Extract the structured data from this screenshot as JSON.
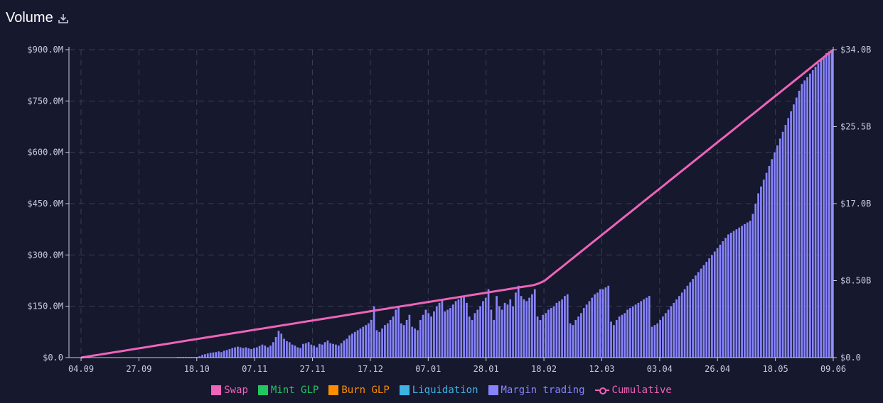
{
  "header": {
    "title": "Volume",
    "download_icon": "download-icon"
  },
  "colors": {
    "swap": "#ee64b8",
    "mint": "#22c761",
    "burn": "#fe8d00",
    "liquidation": "#3eb4e4",
    "margin": "#8884ff",
    "cumulative": "#ee64b8",
    "grid": "#3a3d58",
    "axis": "#c8cbe0"
  },
  "chart_data": {
    "type": "bar",
    "title": "Volume",
    "x_ticks": [
      "04.09",
      "27.09",
      "18.10",
      "07.11",
      "27.11",
      "17.12",
      "07.01",
      "28.01",
      "18.02",
      "12.03",
      "03.04",
      "26.04",
      "18.05",
      "09.06"
    ],
    "y_left_ticks": [
      "$0.0",
      "$150.0M",
      "$300.0M",
      "$450.0M",
      "$600.0M",
      "$750.0M",
      "$900.0M"
    ],
    "y_right_ticks": [
      "$0.0",
      "$8.50B",
      "$17.0B",
      "$25.5B",
      "$34.0B"
    ],
    "ylim_left": [
      0,
      900
    ],
    "ylim_right": [
      0,
      34
    ],
    "units": {
      "left": "$M",
      "right": "$B"
    },
    "grid": true,
    "legend_position": "bottom",
    "series": [
      {
        "name": "Swap",
        "kind": "bar",
        "color": "#ee64b8"
      },
      {
        "name": "Mint GLP",
        "kind": "bar",
        "color": "#22c761"
      },
      {
        "name": "Burn GLP",
        "kind": "bar",
        "color": "#fe8d00"
      },
      {
        "name": "Liquidation",
        "kind": "bar",
        "color": "#3eb4e4"
      },
      {
        "name": "Margin trading",
        "kind": "bar",
        "color": "#8884ff"
      },
      {
        "name": "Cumulative",
        "kind": "line",
        "axis": "right",
        "color": "#ee64b8"
      }
    ],
    "margin_trading": [
      1,
      1,
      1,
      1,
      1,
      1,
      1,
      1,
      1,
      1,
      1,
      1,
      1,
      1,
      1,
      1,
      1,
      1,
      1,
      1,
      1,
      1,
      1,
      1,
      1,
      1,
      1,
      1,
      1,
      1,
      1,
      1,
      1,
      1,
      1,
      2,
      2,
      2,
      2,
      2,
      2,
      2,
      2,
      4,
      8,
      10,
      12,
      14,
      15,
      16,
      18,
      16,
      20,
      22,
      25,
      28,
      30,
      32,
      30,
      28,
      30,
      27,
      25,
      28,
      30,
      34,
      38,
      35,
      30,
      35,
      45,
      60,
      78,
      70,
      55,
      48,
      45,
      38,
      35,
      30,
      28,
      40,
      42,
      45,
      38,
      35,
      30,
      40,
      38,
      45,
      50,
      42,
      40,
      38,
      35,
      42,
      50,
      55,
      65,
      70,
      75,
      80,
      85,
      90,
      95,
      100,
      110,
      150,
      80,
      75,
      85,
      95,
      100,
      110,
      120,
      140,
      150,
      100,
      95,
      110,
      125,
      90,
      85,
      80,
      110,
      125,
      140,
      130,
      120,
      135,
      150,
      160,
      170,
      135,
      140,
      145,
      155,
      165,
      170,
      175,
      180,
      160,
      120,
      110,
      130,
      140,
      150,
      165,
      175,
      200,
      140,
      110,
      180,
      150,
      140,
      160,
      155,
      170,
      150,
      190,
      210,
      180,
      170,
      165,
      175,
      185,
      200,
      120,
      110,
      125,
      130,
      140,
      145,
      150,
      160,
      165,
      170,
      180,
      185,
      100,
      95,
      110,
      120,
      130,
      145,
      155,
      165,
      175,
      185,
      190,
      200,
      200,
      205,
      210,
      105,
      95,
      110,
      120,
      125,
      130,
      140,
      145,
      150,
      155,
      160,
      165,
      170,
      175,
      180,
      90,
      95,
      100,
      110,
      120,
      130,
      140,
      150,
      160,
      170,
      180,
      190,
      200,
      210,
      220,
      230,
      240,
      250,
      260,
      270,
      280,
      290,
      300,
      310,
      320,
      330,
      340,
      350,
      360,
      365,
      370,
      375,
      380,
      385,
      390,
      395,
      400,
      420,
      450,
      480,
      500,
      520,
      540,
      560,
      580,
      600,
      620,
      640,
      660,
      680,
      700,
      720,
      740,
      760,
      780,
      800,
      810,
      820,
      830,
      840,
      850,
      860,
      870,
      880,
      890,
      895,
      900
    ],
    "cumulative": [
      0,
      0.1,
      0.2,
      0.3,
      0.4,
      0.5,
      0.6,
      0.7,
      0.8,
      0.9,
      1.0,
      1.1,
      1.2,
      1.3,
      1.4,
      1.5,
      1.6,
      1.7,
      1.8,
      1.9,
      2.0,
      2.1,
      2.2,
      2.3,
      2.4,
      2.5,
      2.6,
      2.7,
      2.8,
      2.9,
      3.0,
      3.1,
      3.2,
      3.3,
      3.4,
      3.5,
      3.6,
      3.7,
      3.8,
      3.9,
      4.0,
      4.1,
      4.2,
      4.3,
      4.4,
      4.5,
      4.6,
      4.7,
      4.8,
      4.9,
      5.0,
      5.1,
      5.2,
      5.3,
      5.4,
      5.5,
      5.6,
      5.7,
      5.8,
      5.9,
      6.0,
      6.1,
      6.2,
      6.3,
      6.4,
      6.5,
      6.6,
      6.7,
      6.8,
      6.9,
      7.0,
      7.1,
      7.2,
      7.3,
      7.4,
      7.5,
      7.6,
      7.7,
      7.8,
      7.9,
      8.0,
      8.2,
      8.5,
      9.0,
      9.5,
      10.0,
      10.5,
      11.0,
      11.5,
      12.0,
      12.5,
      13.0,
      13.5,
      14.0,
      14.5,
      15.0,
      15.5,
      16.0,
      16.5,
      17.0,
      17.5,
      18.0,
      18.5,
      19.0,
      19.5,
      20.0,
      20.5,
      21.0,
      21.5,
      22.0,
      22.5,
      23.0,
      23.5,
      24.0,
      24.5,
      25.0,
      25.5,
      26.0,
      26.5,
      27.0,
      27.5,
      28.0,
      28.5,
      29.0,
      29.5,
      30.0,
      30.5,
      31.0,
      31.5,
      32.0,
      32.5,
      33.0,
      33.5,
      34.0
    ]
  },
  "legend": [
    {
      "label": "Swap",
      "color": "#ee64b8",
      "kind": "box"
    },
    {
      "label": "Mint GLP",
      "color": "#22c761",
      "kind": "box"
    },
    {
      "label": "Burn GLP",
      "color": "#fe8d00",
      "kind": "box"
    },
    {
      "label": "Liquidation",
      "color": "#3eb4e4",
      "kind": "box"
    },
    {
      "label": "Margin trading",
      "color": "#8884ff",
      "kind": "box"
    },
    {
      "label": "Cumulative",
      "color": "#ee64b8",
      "kind": "line"
    }
  ]
}
